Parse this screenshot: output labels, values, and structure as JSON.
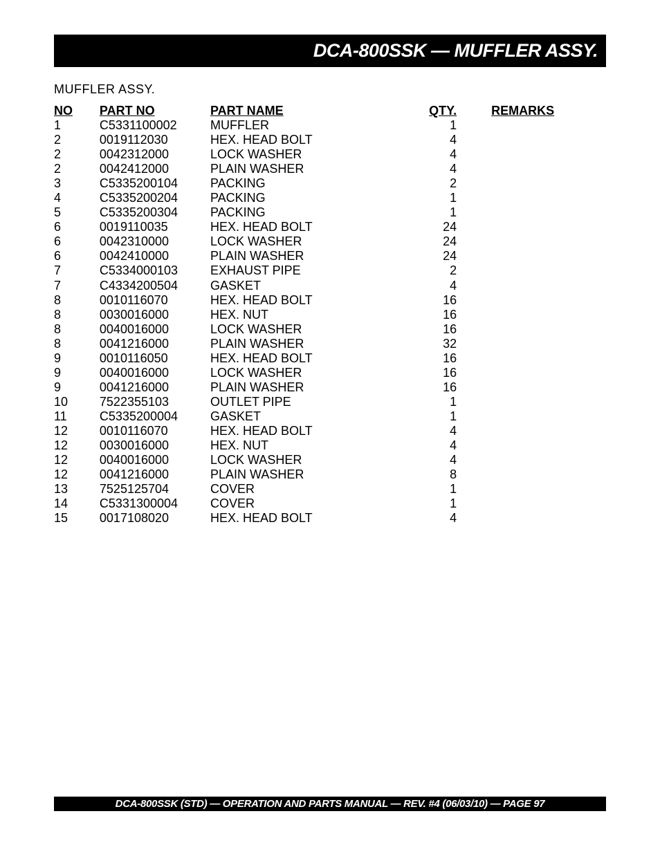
{
  "header": {
    "title": "DCA-800SSK — MUFFLER ASSY."
  },
  "section_label": "MUFFLER ASSY.",
  "table": {
    "columns": {
      "no": "NO",
      "partno": "PART NO",
      "name": "PART NAME",
      "qty": "QTY.",
      "remarks": "REMARKS"
    },
    "rows": [
      {
        "no": "1",
        "partno": "C5331100002",
        "name": "MUFFLER",
        "qty": "1",
        "remarks": ""
      },
      {
        "no": "2",
        "partno": "0019112030",
        "name": "HEX. HEAD BOLT",
        "qty": "4",
        "remarks": ""
      },
      {
        "no": "2",
        "partno": "0042312000",
        "name": "LOCK WASHER",
        "qty": "4",
        "remarks": ""
      },
      {
        "no": "2",
        "partno": "0042412000",
        "name": "PLAIN WASHER",
        "qty": "4",
        "remarks": ""
      },
      {
        "no": "3",
        "partno": "C5335200104",
        "name": "PACKING",
        "qty": "2",
        "remarks": ""
      },
      {
        "no": "4",
        "partno": "C5335200204",
        "name": "PACKING",
        "qty": "1",
        "remarks": ""
      },
      {
        "no": "5",
        "partno": "C5335200304",
        "name": "PACKING",
        "qty": "1",
        "remarks": ""
      },
      {
        "no": "6",
        "partno": "0019110035",
        "name": "HEX. HEAD BOLT",
        "qty": "24",
        "remarks": ""
      },
      {
        "no": "6",
        "partno": "0042310000",
        "name": "LOCK WASHER",
        "qty": "24",
        "remarks": ""
      },
      {
        "no": "6",
        "partno": "0042410000",
        "name": "PLAIN WASHER",
        "qty": "24",
        "remarks": ""
      },
      {
        "no": "7",
        "partno": "C5334000103",
        "name": "EXHAUST PIPE",
        "qty": "2",
        "remarks": ""
      },
      {
        "no": "7",
        "partno": "C4334200504",
        "name": "GASKET",
        "qty": "4",
        "remarks": ""
      },
      {
        "no": "8",
        "partno": "0010116070",
        "name": "HEX. HEAD BOLT",
        "qty": "16",
        "remarks": ""
      },
      {
        "no": "8",
        "partno": "0030016000",
        "name": "HEX. NUT",
        "qty": "16",
        "remarks": ""
      },
      {
        "no": "8",
        "partno": "0040016000",
        "name": "LOCK WASHER",
        "qty": "16",
        "remarks": ""
      },
      {
        "no": "8",
        "partno": "0041216000",
        "name": "PLAIN WASHER",
        "qty": "32",
        "remarks": ""
      },
      {
        "no": "9",
        "partno": "0010116050",
        "name": "HEX. HEAD BOLT",
        "qty": "16",
        "remarks": ""
      },
      {
        "no": "9",
        "partno": "0040016000",
        "name": "LOCK WASHER",
        "qty": "16",
        "remarks": ""
      },
      {
        "no": "9",
        "partno": "0041216000",
        "name": "PLAIN WASHER",
        "qty": "16",
        "remarks": ""
      },
      {
        "no": "10",
        "partno": "7522355103",
        "name": "OUTLET PIPE",
        "qty": "1",
        "remarks": ""
      },
      {
        "no": "11",
        "partno": "C5335200004",
        "name": "GASKET",
        "qty": "1",
        "remarks": ""
      },
      {
        "no": "12",
        "partno": "0010116070",
        "name": "HEX. HEAD BOLT",
        "qty": "4",
        "remarks": ""
      },
      {
        "no": "12",
        "partno": "0030016000",
        "name": "HEX. NUT",
        "qty": "4",
        "remarks": ""
      },
      {
        "no": "12",
        "partno": "0040016000",
        "name": "LOCK WASHER",
        "qty": "4",
        "remarks": ""
      },
      {
        "no": "12",
        "partno": "0041216000",
        "name": "PLAIN WASHER",
        "qty": "8",
        "remarks": ""
      },
      {
        "no": "13",
        "partno": "7525125704",
        "name": "COVER",
        "qty": "1",
        "remarks": ""
      },
      {
        "no": "14",
        "partno": "C5331300004",
        "name": "COVER",
        "qty": "1",
        "remarks": ""
      },
      {
        "no": "15",
        "partno": "0017108020",
        "name": "HEX. HEAD BOLT",
        "qty": "4",
        "remarks": ""
      }
    ]
  },
  "footer": {
    "text": "DCA-800SSK (STD) — OPERATION AND PARTS MANUAL — REV. #4  (06/03/10) — PAGE 97"
  }
}
